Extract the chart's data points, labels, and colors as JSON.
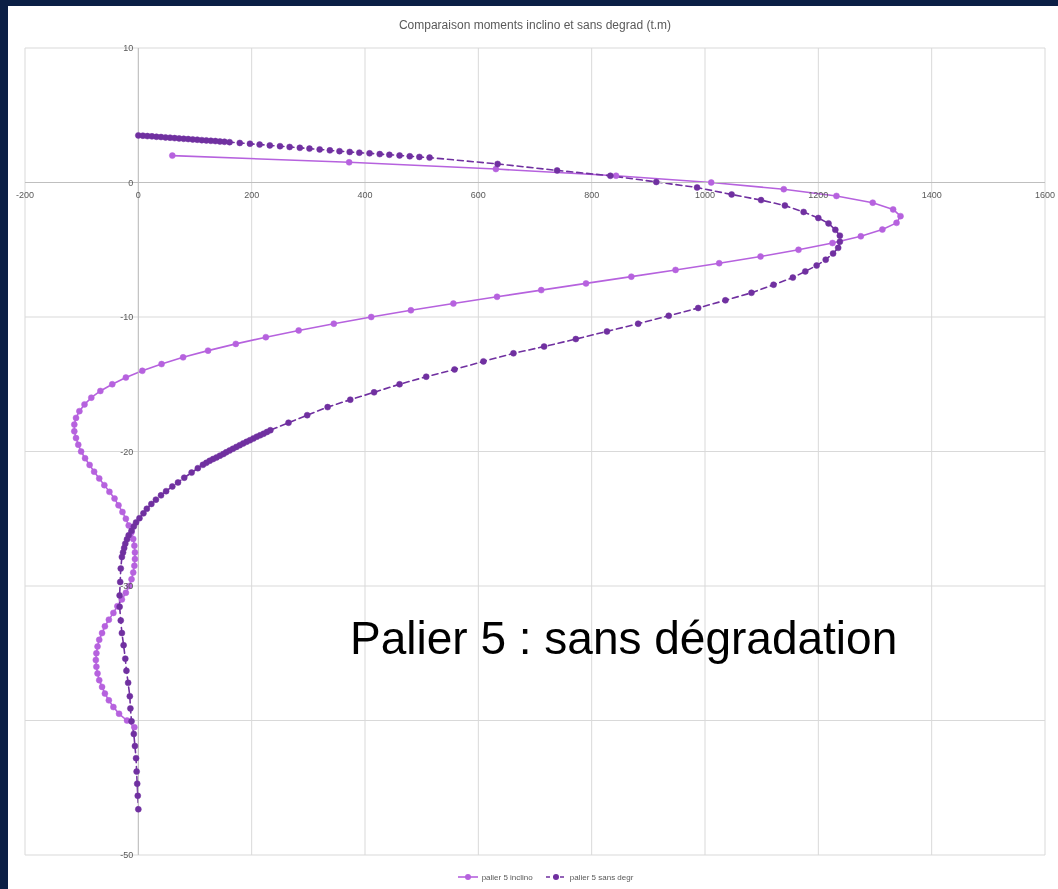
{
  "chart_data": {
    "type": "line",
    "title": "Comparaison moments inclino et sans degrad (t.m)",
    "xlim": [
      -200,
      1600
    ],
    "xticks": [
      -200,
      0,
      200,
      400,
      600,
      800,
      1000,
      1200,
      1400,
      1600
    ],
    "ylim": [
      -50,
      10
    ],
    "yticks": [
      -50,
      {
        "value": -40,
        "label": null
      },
      -30,
      -20,
      -10,
      0,
      10
    ],
    "grid": true,
    "legend": "bottom",
    "marker": "circle",
    "annotations": [
      "Palier 5 : sans dégradation"
    ],
    "series": [
      {
        "name": "palier 5 inclino",
        "color": "#b662de",
        "line_style": "solid",
        "x": [
          60,
          372,
          631,
          843,
          1011,
          1139,
          1232,
          1296,
          1332,
          1345,
          1338,
          1313,
          1275,
          1225,
          1165,
          1098,
          1025,
          948,
          870,
          790,
          711,
          633,
          556,
          481,
          411,
          345,
          283,
          225,
          172,
          123,
          79,
          41,
          7,
          -22,
          -46,
          -67,
          -83,
          -95,
          -104,
          -110,
          -113,
          -113,
          -110,
          -106,
          -101,
          -94,
          -86,
          -78,
          -69,
          -60,
          -51,
          -42,
          -35,
          -28,
          -22,
          -17,
          -12,
          -9,
          -7,
          -6,
          -6,
          -7,
          -9,
          -12,
          -16,
          -22,
          -29,
          -37,
          -44,
          -52,
          -59,
          -64,
          -69,
          -72,
          -74,
          -75,
          -74,
          -72,
          -69,
          -64,
          -59,
          -52,
          -44,
          -34,
          -20,
          -7
        ],
        "values": [
          2,
          1.5,
          1,
          0.5,
          0,
          -0.5,
          -1,
          -1.5,
          -2,
          -2.5,
          -3,
          -3.5,
          -4,
          -4.5,
          -5,
          -5.5,
          -6,
          -6.5,
          -7,
          -7.5,
          -8,
          -8.5,
          -9,
          -9.5,
          -10,
          -10.5,
          -11,
          -11.5,
          -12,
          -12.5,
          -13,
          -13.5,
          -14,
          -14.5,
          -15,
          -15.5,
          -16,
          -16.5,
          -17,
          -17.5,
          -18,
          -18.5,
          -19,
          -19.5,
          -20,
          -20.5,
          -21,
          -21.5,
          -22,
          -22.5,
          -23,
          -23.5,
          -24,
          -24.5,
          -25,
          -25.5,
          -26,
          -26.5,
          -27,
          -27.5,
          -28,
          -28.5,
          -29,
          -29.5,
          -30,
          -30.5,
          -31,
          -31.5,
          -32,
          -32.5,
          -33,
          -33.5,
          -34,
          -34.5,
          -35,
          -35.5,
          -36,
          -36.5,
          -37,
          -37.5,
          -38,
          -38.5,
          -39,
          -39.5,
          -40,
          -40.5
        ]
      },
      {
        "name": "palier 5 sans degr",
        "color": "#7030a0",
        "line_style": "dashed",
        "x": [
          0,
          8,
          16,
          24,
          32,
          40,
          48,
          56,
          64,
          72,
          80,
          88,
          96,
          104,
          112,
          120,
          128,
          136,
          144,
          152,
          161,
          179,
          197,
          214,
          232,
          250,
          267,
          285,
          302,
          320,
          338,
          355,
          373,
          390,
          408,
          426,
          443,
          461,
          479,
          496,
          514,
          634,
          739,
          833,
          914,
          986,
          1047,
          1099,
          1141,
          1174,
          1200,
          1218,
          1230,
          1238,
          1238,
          1235,
          1226,
          1213,
          1197,
          1177,
          1155,
          1121,
          1082,
          1036,
          988,
          936,
          882,
          827,
          772,
          716,
          662,
          609,
          558,
          508,
          461,
          416,
          374,
          334,
          298,
          265,
          233,
          227,
          221,
          215,
          209,
          203,
          197,
          191,
          185,
          179,
          173,
          167,
          161,
          155,
          150,
          144,
          138,
          132,
          126,
          120,
          114,
          105,
          94,
          81,
          70,
          60,
          49,
          40,
          31,
          23,
          15,
          9,
          2,
          -4,
          -8,
          -12,
          -17,
          -20,
          -23,
          -25,
          -27,
          -29,
          -31,
          -32,
          -33,
          -33,
          -31,
          -29,
          -26,
          -23,
          -21,
          -18,
          -15,
          -14,
          -12,
          -8,
          -6,
          -4,
          -3,
          -2,
          -1,
          0
        ],
        "values": [
          3.5,
          3.48,
          3.45,
          3.43,
          3.4,
          3.38,
          3.35,
          3.33,
          3.3,
          3.28,
          3.25,
          3.23,
          3.2,
          3.18,
          3.15,
          3.13,
          3.1,
          3.08,
          3.05,
          3.03,
          3.0,
          2.94,
          2.88,
          2.82,
          2.76,
          2.7,
          2.64,
          2.58,
          2.52,
          2.46,
          2.39,
          2.33,
          2.27,
          2.22,
          2.17,
          2.11,
          2.06,
          2.01,
          1.95,
          1.9,
          1.85,
          1.38,
          0.9,
          0.5,
          0.04,
          -0.37,
          -0.89,
          -1.31,
          -1.71,
          -2.19,
          -2.64,
          -3.04,
          -3.52,
          -3.95,
          -4.4,
          -4.86,
          -5.28,
          -5.74,
          -6.17,
          -6.61,
          -7.07,
          -7.6,
          -8.2,
          -8.76,
          -9.33,
          -9.91,
          -10.5,
          -11.07,
          -11.64,
          -12.2,
          -12.7,
          -13.3,
          -13.9,
          -14.44,
          -15.0,
          -15.6,
          -16.15,
          -16.7,
          -17.3,
          -17.86,
          -18.42,
          -18.55,
          -18.68,
          -18.79,
          -18.9,
          -19.03,
          -19.16,
          -19.28,
          -19.4,
          -19.53,
          -19.66,
          -19.8,
          -19.93,
          -20.06,
          -20.19,
          -20.31,
          -20.44,
          -20.56,
          -20.69,
          -20.84,
          -20.99,
          -21.24,
          -21.57,
          -21.95,
          -22.3,
          -22.6,
          -22.95,
          -23.26,
          -23.58,
          -23.9,
          -24.26,
          -24.6,
          -24.96,
          -25.27,
          -25.57,
          -25.9,
          -26.23,
          -26.53,
          -26.85,
          -27.18,
          -27.5,
          -27.84,
          -28.7,
          -29.7,
          -30.7,
          -31.55,
          -32.56,
          -33.5,
          -34.4,
          -35.4,
          -36.3,
          -37.2,
          -38.2,
          -39.1,
          -40.06,
          -41,
          -41.9,
          -42.8,
          -43.8,
          -44.7,
          -45.6,
          -46.6
        ]
      }
    ]
  }
}
